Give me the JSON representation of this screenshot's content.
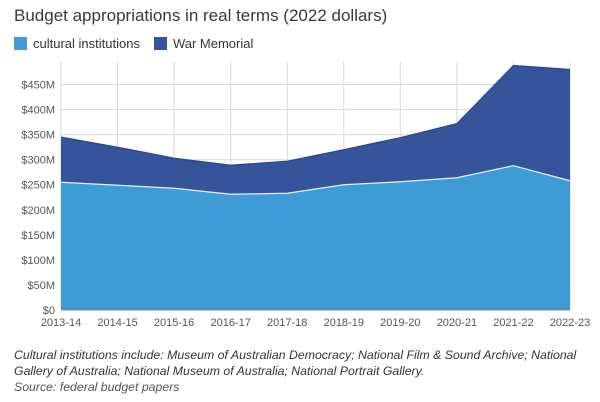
{
  "title": "Budget appropriations in real terms (2022 dollars)",
  "note": "Cultural institutions include: Museum of Australian Democracy; National Film & Sound Archive; National Gallery of Australia; National Museum of Australia; National Portrait Gallery.",
  "source": "Source: federal budget papers",
  "colors": {
    "cultural": "#3d9bd6",
    "war": "#35549c",
    "grid": "#d9d9d9",
    "axis": "#888888"
  },
  "chart_data": {
    "type": "area",
    "stacked": true,
    "categories": [
      "2013-14",
      "2014-15",
      "2015-16",
      "2016-17",
      "2017-18",
      "2018-19",
      "2019-20",
      "2020-21",
      "2021-22",
      "2022-23"
    ],
    "series": [
      {
        "name": "cultural institutions",
        "values": [
          255,
          249,
          243,
          231,
          233,
          250,
          256,
          264,
          288,
          258
        ]
      },
      {
        "name": "War Memorial",
        "values": [
          90,
          76,
          60,
          58,
          64,
          70,
          88,
          108,
          200,
          222
        ]
      }
    ],
    "y_ticks": [
      "$0",
      "$50M",
      "$100M",
      "$150M",
      "$200M",
      "$250M",
      "$300M",
      "$350M",
      "$400M",
      "$450M"
    ],
    "ylim": [
      0,
      495
    ],
    "grid": true,
    "legend_position": "top-left"
  }
}
